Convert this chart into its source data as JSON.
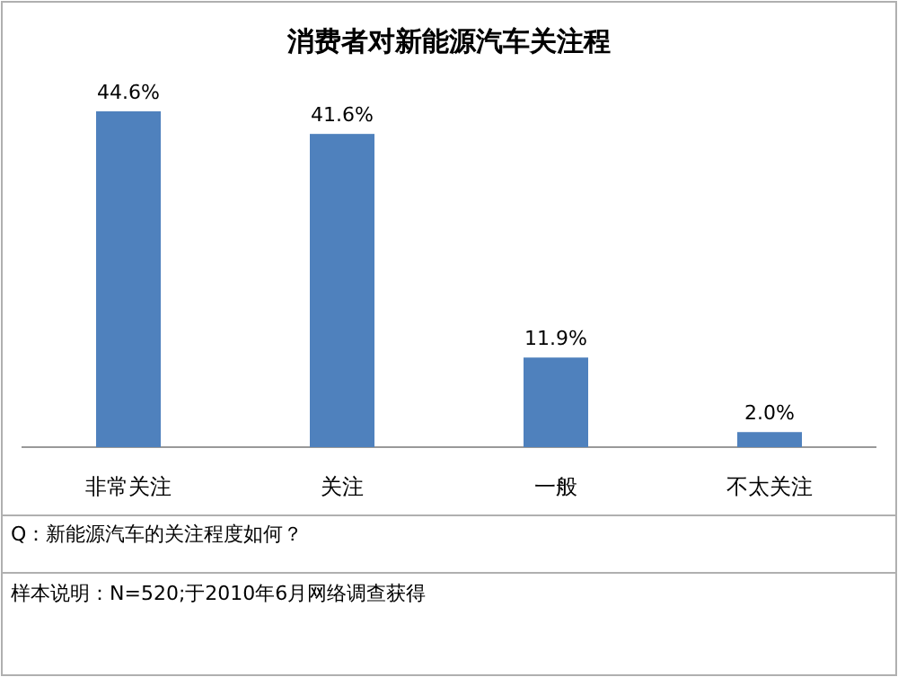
{
  "chart_data": {
    "type": "bar",
    "title": "消费者对新能源汽车关注程",
    "categories": [
      "非常关注",
      "关注",
      "一般",
      "不太关注"
    ],
    "values": [
      44.6,
      41.6,
      11.9,
      2.0
    ],
    "value_labels": [
      "44.6%",
      "41.6%",
      "11.9%",
      "2.0%"
    ],
    "color": "#4f81bd",
    "annotations": [
      "Q：新能源汽车的关注程度如何？",
      "样本说明：N=520;于2010年6月网络调查获得"
    ]
  }
}
